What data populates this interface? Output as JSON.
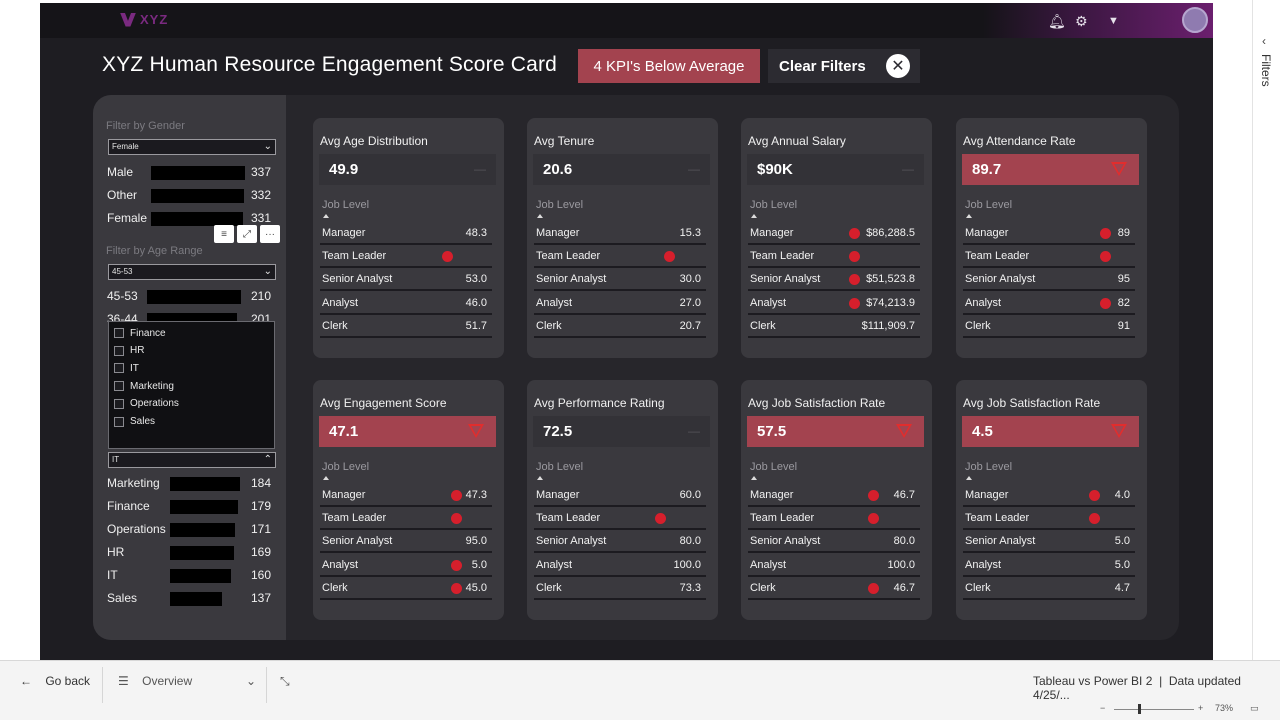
{
  "header": {
    "logo_text": "XYZ",
    "title": "XYZ Human Resource Engagement Score Card",
    "kpi_alert": "4 KPI's Below Average",
    "clear_filters": "Clear Filters"
  },
  "filters_pane_label": "Filters",
  "sidebar": {
    "gender": {
      "label": "Filter by Gender",
      "selected": "Female",
      "rows": [
        {
          "label": "Male",
          "value": 337,
          "bar": 1.0
        },
        {
          "label": "Other",
          "value": 332,
          "bar": 0.985
        },
        {
          "label": "Female",
          "value": 331,
          "bar": 0.982
        }
      ]
    },
    "age": {
      "label": "Filter by Age Range",
      "selected": "45-53",
      "rows": [
        {
          "label": "45-53",
          "value": 210
        },
        {
          "label": "36-44",
          "value": 201
        }
      ]
    },
    "department": {
      "selected": "IT",
      "options": [
        "Finance",
        "HR",
        "IT",
        "Marketing",
        "Operations",
        "Sales"
      ],
      "rows": [
        {
          "label": "Marketing",
          "value": 184
        },
        {
          "label": "Finance",
          "value": 179
        },
        {
          "label": "Operations",
          "value": 171
        },
        {
          "label": "HR",
          "value": 169
        },
        {
          "label": "IT",
          "value": 160
        },
        {
          "label": "Sales",
          "value": 137
        }
      ]
    }
  },
  "job_level_label": "Job Level",
  "cards": [
    {
      "title": "Avg Age Distribution",
      "value": "49.9",
      "alert": false,
      "rows": [
        {
          "label": "Manager",
          "value": "48.3",
          "dot": false
        },
        {
          "label": "Team Leader",
          "value": "",
          "dot": true
        },
        {
          "label": "Senior Analyst",
          "value": "53.0",
          "dot": false
        },
        {
          "label": "Analyst",
          "value": "46.0",
          "dot": false
        },
        {
          "label": "Clerk",
          "value": "51.7",
          "dot": false
        }
      ]
    },
    {
      "title": "Avg Tenure",
      "value": "20.6",
      "alert": false,
      "rows": [
        {
          "label": "Manager",
          "value": "15.3",
          "dot": false
        },
        {
          "label": "Team Leader",
          "value": "",
          "dot": true
        },
        {
          "label": "Senior Analyst",
          "value": "30.0",
          "dot": false
        },
        {
          "label": "Analyst",
          "value": "27.0",
          "dot": false
        },
        {
          "label": "Clerk",
          "value": "20.7",
          "dot": false
        }
      ]
    },
    {
      "title": "Avg Annual Salary",
      "value": "$90K",
      "alert": false,
      "rows": [
        {
          "label": "Manager",
          "value": "$86,288.5",
          "dot": true
        },
        {
          "label": "Team Leader",
          "value": "",
          "dot": true
        },
        {
          "label": "Senior Analyst",
          "value": "$51,523.8",
          "dot": true
        },
        {
          "label": "Analyst",
          "value": "$74,213.9",
          "dot": true
        },
        {
          "label": "Clerk",
          "value": "$111,909.7",
          "dot": false
        }
      ]
    },
    {
      "title": "Avg Attendance Rate",
      "value": "89.7",
      "alert": true,
      "rows": [
        {
          "label": "Manager",
          "value": "89",
          "dot": true
        },
        {
          "label": "Team Leader",
          "value": "",
          "dot": true
        },
        {
          "label": "Senior Analyst",
          "value": "95",
          "dot": false
        },
        {
          "label": "Analyst",
          "value": "82",
          "dot": true
        },
        {
          "label": "Clerk",
          "value": "91",
          "dot": false
        }
      ]
    },
    {
      "title": "Avg Engagement Score",
      "value": "47.1",
      "alert": true,
      "rows": [
        {
          "label": "Manager",
          "value": "47.3",
          "dot": true
        },
        {
          "label": "Team Leader",
          "value": "",
          "dot": true
        },
        {
          "label": "Senior Analyst",
          "value": "95.0",
          "dot": false
        },
        {
          "label": "Analyst",
          "value": "5.0",
          "dot": true
        },
        {
          "label": "Clerk",
          "value": "45.0",
          "dot": true
        }
      ]
    },
    {
      "title": "Avg Performance Rating",
      "value": "72.5",
      "alert": false,
      "rows": [
        {
          "label": "Manager",
          "value": "60.0",
          "dot": false
        },
        {
          "label": "Team Leader",
          "value": "",
          "dot": true
        },
        {
          "label": "Senior Analyst",
          "value": "80.0",
          "dot": false
        },
        {
          "label": "Analyst",
          "value": "100.0",
          "dot": false
        },
        {
          "label": "Clerk",
          "value": "73.3",
          "dot": false
        }
      ]
    },
    {
      "title": "Avg Job Satisfaction Rate",
      "value": "57.5",
      "alert": true,
      "rows": [
        {
          "label": "Manager",
          "value": "46.7",
          "dot": true
        },
        {
          "label": "Team Leader",
          "value": "",
          "dot": true
        },
        {
          "label": "Senior Analyst",
          "value": "80.0",
          "dot": false
        },
        {
          "label": "Analyst",
          "value": "100.0",
          "dot": false
        },
        {
          "label": "Clerk",
          "value": "46.7",
          "dot": true
        }
      ]
    },
    {
      "title": "Avg Job Satisfaction Rate",
      "value": "4.5",
      "alert": true,
      "rows": [
        {
          "label": "Manager",
          "value": "4.0",
          "dot": true
        },
        {
          "label": "Team Leader",
          "value": "",
          "dot": true
        },
        {
          "label": "Senior Analyst",
          "value": "5.0",
          "dot": false
        },
        {
          "label": "Analyst",
          "value": "5.0",
          "dot": false
        },
        {
          "label": "Clerk",
          "value": "4.7",
          "dot": false
        }
      ]
    }
  ],
  "bottom": {
    "back": "Go back",
    "page": "Overview",
    "report_name": "Tableau vs Power BI 2",
    "data_updated": "Data updated 4/25/...",
    "zoom": "73%"
  },
  "colors": {
    "alert": "#a3434f",
    "dot": "#d61f2c",
    "background": "#1e1d22"
  }
}
